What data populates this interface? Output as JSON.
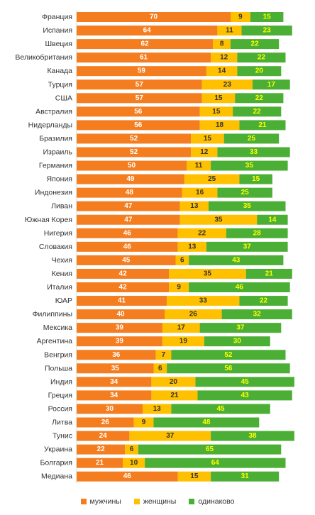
{
  "chart_data": {
    "type": "bar",
    "orientation": "horizontal",
    "stacked": true,
    "title": "",
    "xlabel": "",
    "ylabel": "",
    "xlim": [
      0,
      100
    ],
    "grid": false,
    "legend_position": "bottom",
    "categories": [
      "Франция",
      "Испания",
      "Швеция",
      "Великобритания",
      "Канада",
      "Турция",
      "США",
      "Австралия",
      "Нидерланды",
      "Бразилия",
      "Израиль",
      "Германия",
      "Япония",
      "Индонезия",
      "Ливан",
      "Южная Корея",
      "Нигерия",
      "Словакия",
      "Чехия",
      "Кения",
      "Италия",
      "ЮАР",
      "Филиппины",
      "Мексика",
      "Аргентина",
      "Венгрия",
      "Польша",
      "Индия",
      "Греция",
      "Россия",
      "Литва",
      "Тунис",
      "Украина",
      "Болгария",
      "Медиана"
    ],
    "series": [
      {
        "name": "мужчины",
        "color": "#F47D20",
        "label_color": "#FFFFFF",
        "values": [
          70,
          64,
          62,
          61,
          59,
          57,
          57,
          56,
          56,
          52,
          52,
          50,
          49,
          48,
          47,
          47,
          46,
          46,
          45,
          42,
          42,
          41,
          40,
          39,
          39,
          36,
          35,
          34,
          34,
          30,
          26,
          24,
          22,
          21,
          46
        ]
      },
      {
        "name": "женщины",
        "color": "#FFC000",
        "label_color": "#333333",
        "values": [
          9,
          11,
          8,
          12,
          14,
          23,
          15,
          15,
          18,
          15,
          12,
          11,
          25,
          16,
          13,
          35,
          22,
          13,
          6,
          35,
          9,
          33,
          26,
          17,
          19,
          7,
          6,
          20,
          21,
          13,
          9,
          37,
          6,
          10,
          15
        ]
      },
      {
        "name": "одинаково",
        "color": "#4CAF35",
        "label_color": "#FFFF00",
        "values": [
          15,
          23,
          22,
          22,
          20,
          17,
          22,
          22,
          21,
          25,
          33,
          35,
          15,
          25,
          35,
          14,
          28,
          37,
          43,
          21,
          46,
          22,
          32,
          37,
          30,
          52,
          56,
          45,
          43,
          45,
          48,
          38,
          65,
          64,
          31
        ]
      }
    ]
  }
}
